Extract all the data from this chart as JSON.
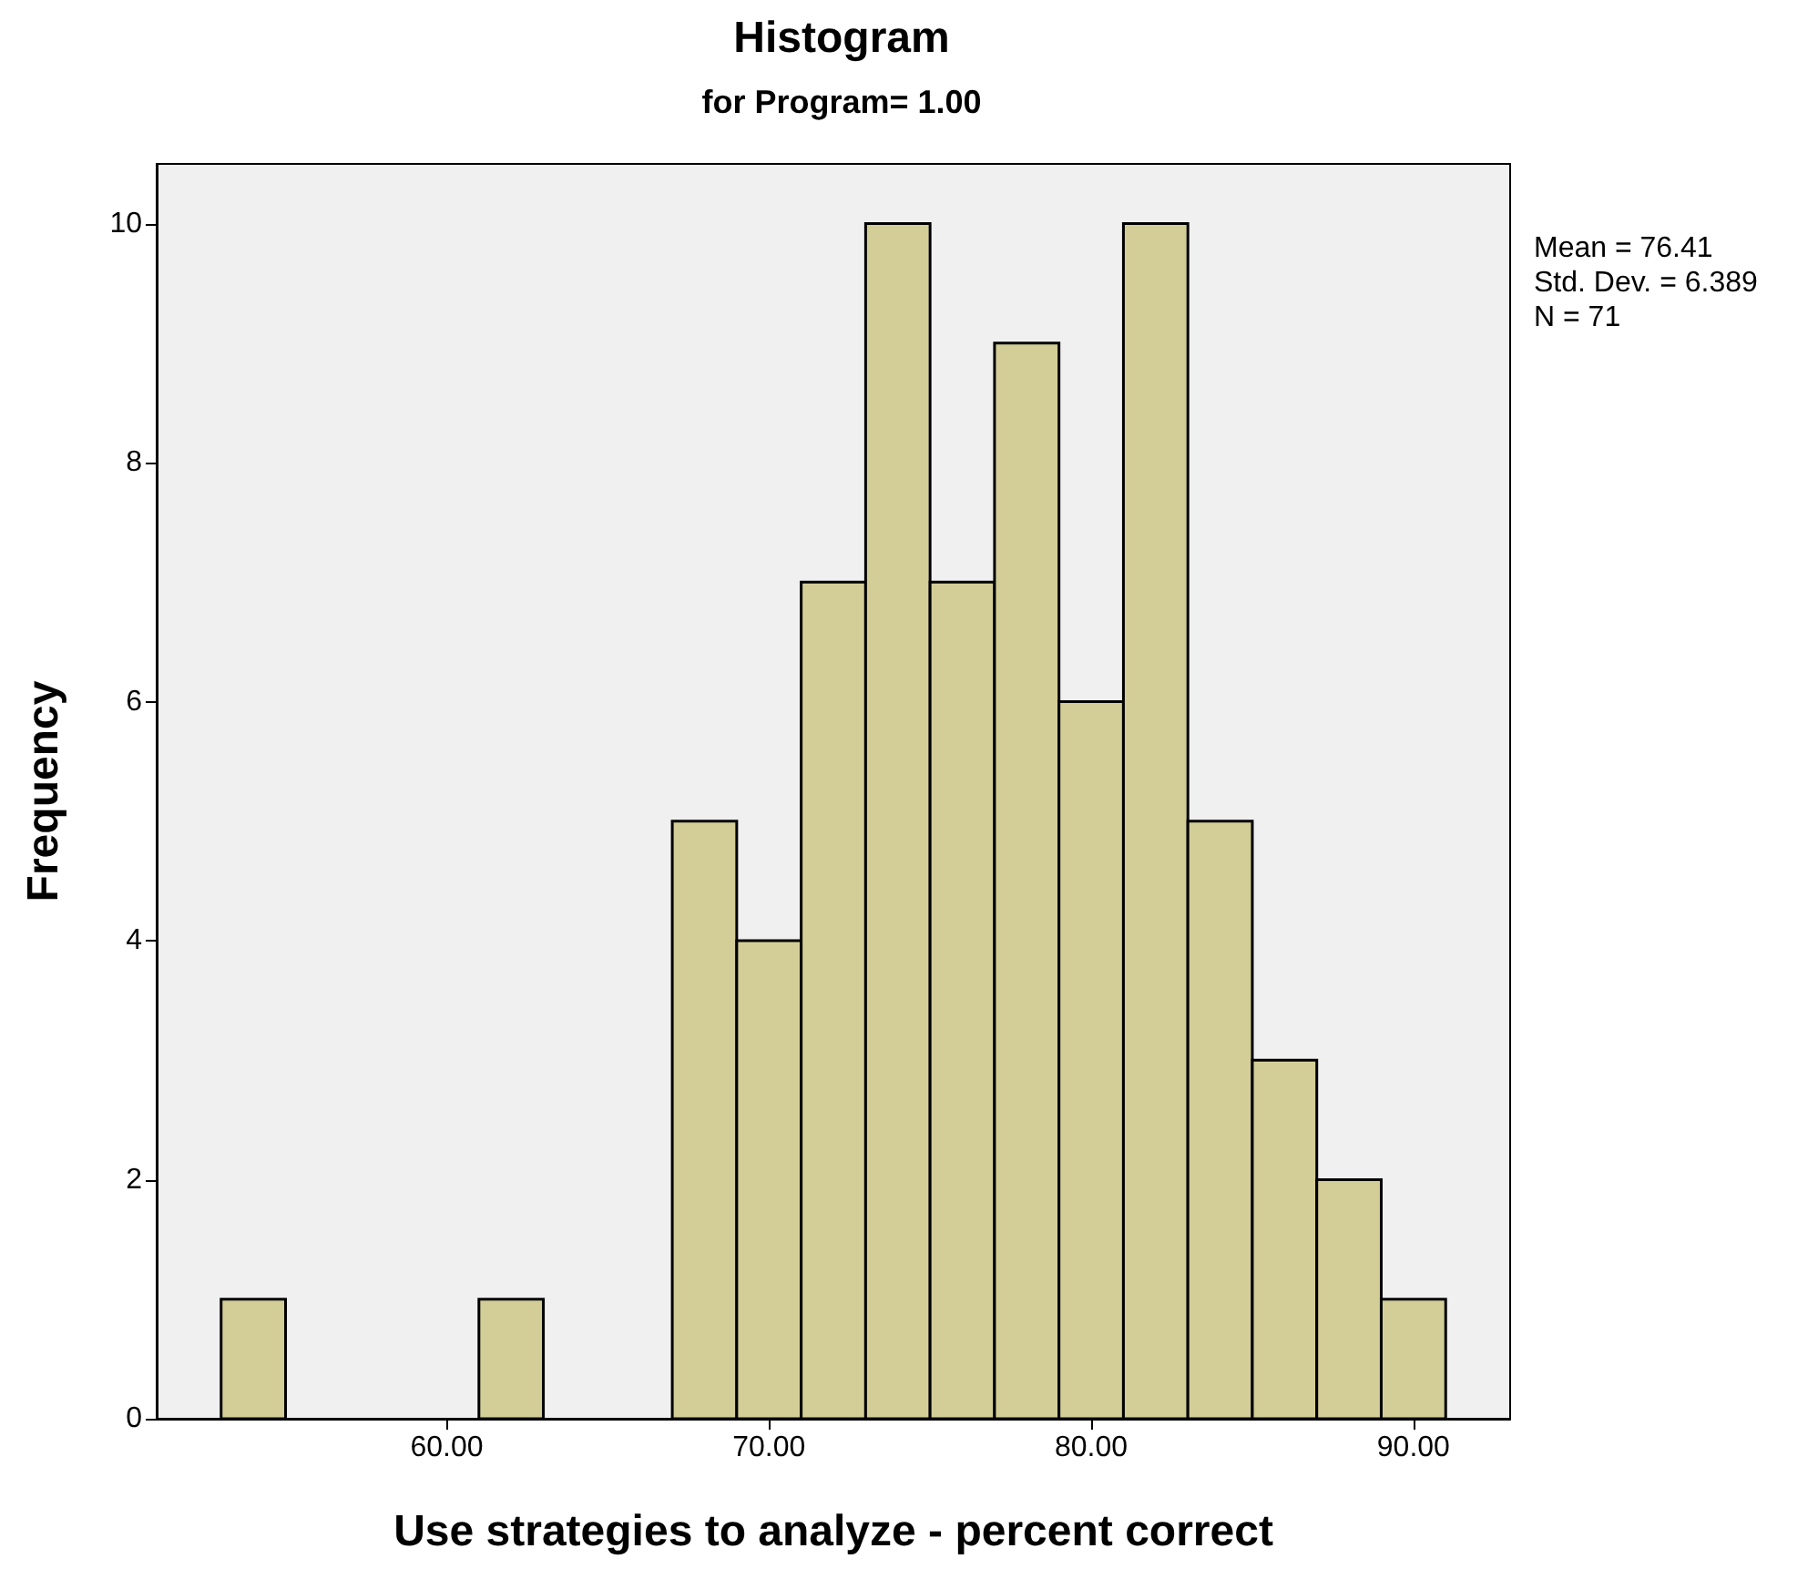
{
  "chart_data": {
    "type": "histogram",
    "title": "Histogram",
    "subtitle": "for Program= 1.00",
    "xlabel": "Use strategies to analyze - percent correct",
    "ylabel": "Frequency",
    "bins": [
      53,
      55,
      57,
      59,
      61,
      63,
      65,
      67,
      69,
      71,
      73,
      75,
      77,
      79,
      81,
      83,
      85,
      87,
      89,
      91
    ],
    "values": [
      1,
      0,
      0,
      0,
      1,
      0,
      0,
      5,
      4,
      7,
      10,
      7,
      9,
      6,
      10,
      5,
      3,
      2,
      1
    ],
    "color": "#d3ce97",
    "xlim": [
      51,
      93
    ],
    "xticks": [
      {
        "value": 60,
        "label": "60.00"
      },
      {
        "value": 70,
        "label": "70.00"
      },
      {
        "value": 80,
        "label": "80.00"
      },
      {
        "value": 90,
        "label": "90.00"
      }
    ],
    "ylim": [
      0,
      10.5
    ],
    "yticks": [
      0,
      2,
      4,
      6,
      8,
      10
    ],
    "grid": false,
    "annotations": [
      "Mean = 76.41",
      "Std. Dev. = 6.389",
      "N = 71"
    ]
  }
}
